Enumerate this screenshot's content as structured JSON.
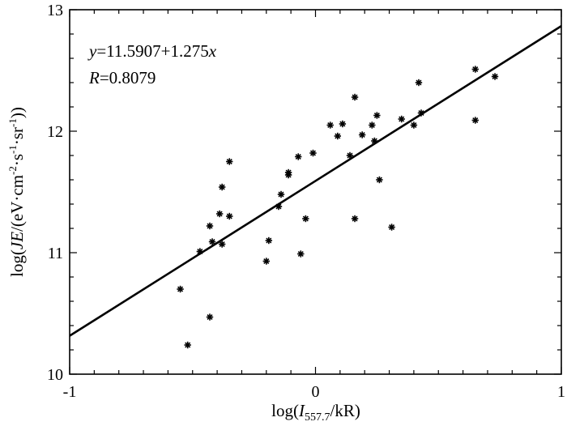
{
  "chart_data": {
    "type": "scatter",
    "title": "",
    "xlabel": {
      "prefix": "log(",
      "var": "I",
      "sub": "557.7",
      "suffix": "/kR)"
    },
    "ylabel": {
      "prefix": "log(",
      "var": "JE",
      "middle": "/(eV·cm",
      "sup1": "-2",
      "m2": "·s",
      "sup2": "-1",
      "m3": "·sr",
      "sup3": "-1",
      "suffix": "))"
    },
    "xlim": [
      -1,
      1
    ],
    "ylim": [
      10,
      13
    ],
    "x_ticks": [
      "-1",
      "0",
      "1"
    ],
    "y_ticks": [
      "10",
      "11",
      "12",
      "13"
    ],
    "grid": false,
    "annotations": {
      "equation_var": "y",
      "equation_rest": "=11.5907+1.275",
      "equation_x": "x",
      "r_var": "R",
      "r_rest": "=0.8079"
    },
    "fit_line": {
      "intercept": 11.5907,
      "slope": 1.275
    },
    "points": [
      [
        -0.55,
        10.7
      ],
      [
        -0.52,
        10.24
      ],
      [
        -0.47,
        11.01
      ],
      [
        -0.43,
        11.22
      ],
      [
        -0.43,
        10.47
      ],
      [
        -0.42,
        11.09
      ],
      [
        -0.39,
        11.32
      ],
      [
        -0.38,
        11.54
      ],
      [
        -0.38,
        11.07
      ],
      [
        -0.35,
        11.75
      ],
      [
        -0.35,
        11.3
      ],
      [
        -0.2,
        10.93
      ],
      [
        -0.19,
        11.1
      ],
      [
        -0.15,
        11.38
      ],
      [
        -0.14,
        11.48
      ],
      [
        -0.11,
        11.66
      ],
      [
        -0.11,
        11.64
      ],
      [
        -0.07,
        11.79
      ],
      [
        -0.06,
        10.99
      ],
      [
        -0.04,
        11.28
      ],
      [
        -0.01,
        11.82
      ],
      [
        0.06,
        12.05
      ],
      [
        0.09,
        11.96
      ],
      [
        0.11,
        12.06
      ],
      [
        0.14,
        11.8
      ],
      [
        0.16,
        12.28
      ],
      [
        0.16,
        11.28
      ],
      [
        0.19,
        11.97
      ],
      [
        0.23,
        12.05
      ],
      [
        0.24,
        11.92
      ],
      [
        0.25,
        12.13
      ],
      [
        0.26,
        11.6
      ],
      [
        0.31,
        11.21
      ],
      [
        0.35,
        12.1
      ],
      [
        0.4,
        12.05
      ],
      [
        0.42,
        12.4
      ],
      [
        0.43,
        12.15
      ],
      [
        0.65,
        12.51
      ],
      [
        0.65,
        12.09
      ],
      [
        0.73,
        12.45
      ]
    ]
  }
}
